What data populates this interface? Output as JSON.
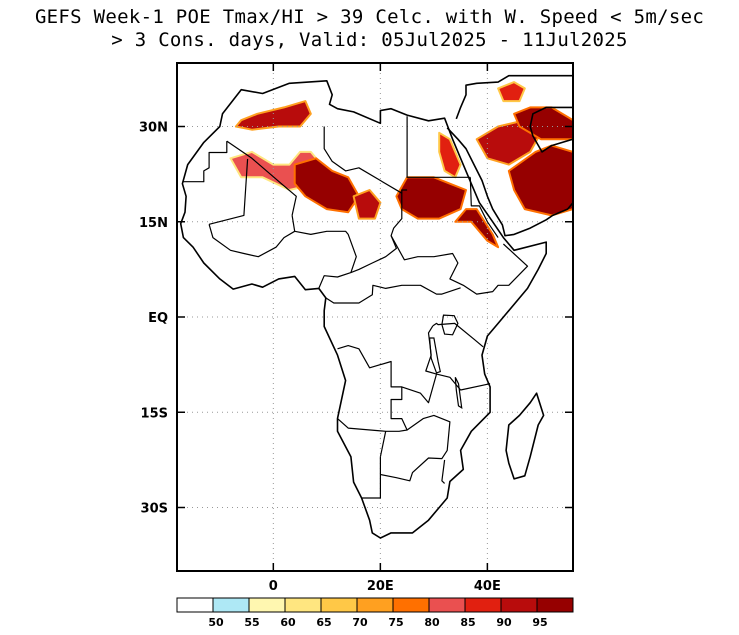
{
  "title": {
    "line1": "GEFS Week-1 POE Tmax/HI > 39 Celc. with W. Speed < 5m/sec",
    "line2": "> 3 Cons. days, Valid: 05Jul2025 - 11Jul2025"
  },
  "axes": {
    "lon_range": [
      -18,
      56
    ],
    "lat_range": [
      -40,
      40
    ],
    "x_ticks": [
      {
        "value": 0,
        "label": "0"
      },
      {
        "value": 20,
        "label": "20E"
      },
      {
        "value": 40,
        "label": "40E"
      }
    ],
    "y_ticks": [
      {
        "value": 30,
        "label": "30N"
      },
      {
        "value": 15,
        "label": "15N"
      },
      {
        "value": 0,
        "label": "EQ"
      },
      {
        "value": -15,
        "label": "15S"
      },
      {
        "value": -30,
        "label": "30S"
      }
    ],
    "grid": "dotted"
  },
  "colorbar": {
    "colors": [
      "#ffffff",
      "#aee8f5",
      "#fff7b0",
      "#ffe680",
      "#ffc847",
      "#ffa020",
      "#ff7000",
      "#ea5050",
      "#e12010",
      "#b80c0c",
      "#960000"
    ],
    "labels": [
      "50",
      "55",
      "60",
      "65",
      "70",
      "75",
      "80",
      "85",
      "90",
      "95"
    ]
  },
  "heat_regions": [
    {
      "name": "algeria-north",
      "level": 9,
      "pts": [
        [
          -6,
          31
        ],
        [
          -3,
          32
        ],
        [
          2,
          33
        ],
        [
          6,
          34
        ],
        [
          7,
          32
        ],
        [
          5,
          30
        ],
        [
          1,
          30
        ],
        [
          -4,
          29.5
        ],
        [
          -7,
          30
        ]
      ]
    },
    {
      "name": "sahara-west",
      "level": 7,
      "pts": [
        [
          -8,
          25
        ],
        [
          -4,
          26
        ],
        [
          0,
          24
        ],
        [
          3,
          24
        ],
        [
          5,
          26
        ],
        [
          7,
          26
        ],
        [
          9,
          24
        ],
        [
          8,
          21
        ],
        [
          3,
          20
        ],
        [
          -2,
          22
        ],
        [
          -6,
          22
        ]
      ]
    },
    {
      "name": "niger-chad",
      "level": 10,
      "pts": [
        [
          4,
          24
        ],
        [
          8,
          25
        ],
        [
          11,
          23
        ],
        [
          14,
          22
        ],
        [
          16,
          19
        ],
        [
          14,
          16.5
        ],
        [
          10,
          17
        ],
        [
          6,
          19
        ],
        [
          4,
          21
        ]
      ]
    },
    {
      "name": "chad-east",
      "level": 9,
      "pts": [
        [
          15,
          19
        ],
        [
          18,
          20
        ],
        [
          20,
          18
        ],
        [
          19,
          15.5
        ],
        [
          16,
          15.5
        ]
      ]
    },
    {
      "name": "sudan-north",
      "level": 10,
      "pts": [
        [
          25,
          22
        ],
        [
          30,
          22
        ],
        [
          33,
          21
        ],
        [
          36,
          20
        ],
        [
          35,
          17
        ],
        [
          31,
          15.5
        ],
        [
          27,
          15.5
        ],
        [
          24,
          17
        ],
        [
          23,
          19
        ]
      ]
    },
    {
      "name": "egypt-east",
      "level": 8,
      "pts": [
        [
          31,
          29
        ],
        [
          33,
          28
        ],
        [
          35,
          24
        ],
        [
          34,
          22
        ],
        [
          32,
          23
        ],
        [
          31,
          26
        ]
      ]
    },
    {
      "name": "arabia-east",
      "level": 10,
      "pts": [
        [
          44,
          23
        ],
        [
          49,
          26
        ],
        [
          52,
          27
        ],
        [
          56,
          26
        ],
        [
          56,
          17
        ],
        [
          52,
          16
        ],
        [
          47,
          17
        ],
        [
          45,
          20
        ]
      ]
    },
    {
      "name": "arabia-north",
      "level": 9,
      "pts": [
        [
          38,
          28
        ],
        [
          42,
          30
        ],
        [
          47,
          31
        ],
        [
          50,
          29
        ],
        [
          48,
          26
        ],
        [
          44,
          24
        ],
        [
          40,
          25
        ]
      ]
    },
    {
      "name": "iraq-gulf",
      "level": 10,
      "pts": [
        [
          45,
          32
        ],
        [
          48,
          33
        ],
        [
          52,
          33
        ],
        [
          56,
          31
        ],
        [
          56,
          28
        ],
        [
          50,
          28
        ],
        [
          46,
          30
        ]
      ]
    },
    {
      "name": "red-sea-coast",
      "level": 10,
      "pts": [
        [
          34,
          15
        ],
        [
          37,
          15
        ],
        [
          40,
          12
        ],
        [
          42,
          11
        ],
        [
          41,
          13
        ],
        [
          38,
          17
        ],
        [
          36,
          17
        ]
      ]
    },
    {
      "name": "mesopotamia",
      "level": 8,
      "pts": [
        [
          42,
          36
        ],
        [
          45,
          37
        ],
        [
          47,
          36
        ],
        [
          46,
          34
        ],
        [
          43,
          34
        ]
      ]
    }
  ],
  "coast_points": [
    [
      -17,
      21
    ],
    [
      -16,
      24
    ],
    [
      -13,
      27.5
    ],
    [
      -10,
      30
    ],
    [
      -9.5,
      32
    ],
    [
      -6,
      35.8
    ],
    [
      -2,
      35.2
    ],
    [
      3,
      36.8
    ],
    [
      10,
      37.2
    ],
    [
      11,
      35
    ],
    [
      10.5,
      33.5
    ],
    [
      12,
      32.8
    ],
    [
      15,
      32.3
    ],
    [
      20,
      30.5
    ],
    [
      20,
      32.5
    ],
    [
      22,
      32.8
    ],
    [
      25,
      31.8
    ],
    [
      29,
      30.9
    ],
    [
      32,
      31.3
    ],
    [
      33.5,
      28
    ],
    [
      35,
      25
    ],
    [
      37,
      21
    ],
    [
      38.5,
      18
    ],
    [
      41,
      15
    ],
    [
      43,
      12.5
    ],
    [
      45,
      10.5
    ],
    [
      51,
      11.8
    ],
    [
      51,
      10
    ],
    [
      49.5,
      7.5
    ],
    [
      47.5,
      4.5
    ],
    [
      42,
      -1
    ],
    [
      40,
      -3
    ],
    [
      39,
      -6
    ],
    [
      39.5,
      -9
    ],
    [
      40.5,
      -11
    ],
    [
      40.5,
      -15
    ],
    [
      37,
      -18
    ],
    [
      35,
      -21
    ],
    [
      35.5,
      -24
    ],
    [
      33,
      -25.9
    ],
    [
      32.5,
      -28.5
    ],
    [
      31,
      -30
    ],
    [
      29,
      -32
    ],
    [
      26,
      -34
    ],
    [
      22,
      -34
    ],
    [
      20,
      -34.8
    ],
    [
      18.5,
      -34
    ],
    [
      18,
      -32
    ],
    [
      16.5,
      -28.5
    ],
    [
      15,
      -26
    ],
    [
      14.5,
      -22
    ],
    [
      12,
      -18
    ],
    [
      12,
      -16
    ],
    [
      13,
      -12
    ],
    [
      13.5,
      -10
    ],
    [
      12,
      -6
    ],
    [
      9.5,
      -1.5
    ],
    [
      9.5,
      1
    ],
    [
      9.8,
      3
    ],
    [
      8.5,
      4.5
    ],
    [
      6,
      4.3
    ],
    [
      4,
      6.4
    ],
    [
      1,
      6
    ],
    [
      -2,
      4.7
    ],
    [
      -4,
      5.2
    ],
    [
      -7.5,
      4.4
    ],
    [
      -10,
      6
    ],
    [
      -13,
      8.5
    ],
    [
      -15,
      11
    ],
    [
      -16.8,
      12.5
    ],
    [
      -17.3,
      14.7
    ],
    [
      -16.5,
      16.5
    ],
    [
      -16.3,
      19
    ],
    [
      -17,
      21
    ]
  ],
  "arabia_points": [
    [
      32.5,
      29.8
    ],
    [
      34.5,
      28
    ],
    [
      36,
      26.5
    ],
    [
      37.5,
      24
    ],
    [
      39,
      21.5
    ],
    [
      40,
      19
    ],
    [
      41,
      17
    ],
    [
      42.8,
      14.5
    ],
    [
      43.3,
      12.8
    ],
    [
      45,
      13
    ],
    [
      48,
      14
    ],
    [
      51,
      15.3
    ],
    [
      52.2,
      16
    ],
    [
      55,
      17
    ],
    [
      56,
      18
    ],
    [
      56,
      28
    ],
    [
      52,
      27
    ],
    [
      50.2,
      26
    ],
    [
      48.5,
      28.5
    ],
    [
      48,
      30
    ],
    [
      48.5,
      32
    ],
    [
      51,
      33
    ],
    [
      56,
      33
    ],
    [
      56,
      38
    ],
    [
      44,
      38
    ],
    [
      42,
      37
    ],
    [
      38,
      36.8
    ],
    [
      36,
      36.5
    ],
    [
      36,
      35
    ],
    [
      35,
      33
    ],
    [
      34.2,
      31.2
    ]
  ],
  "madagascar_points": [
    [
      49.2,
      -12
    ],
    [
      50.5,
      -15.5
    ],
    [
      49.5,
      -17
    ],
    [
      48,
      -22
    ],
    [
      47,
      -25
    ],
    [
      45,
      -25.5
    ],
    [
      44,
      -23
    ],
    [
      43.5,
      -21
    ],
    [
      44,
      -17
    ],
    [
      46,
      -15.5
    ],
    [
      48,
      -13.5
    ]
  ],
  "border_lines": [
    [
      [
        -8.7,
        27.7
      ],
      [
        -4,
        25
      ],
      [
        1.5,
        21
      ],
      [
        4.3,
        19
      ],
      [
        3.5,
        16
      ]
    ],
    [
      [
        -8.7,
        27.7
      ],
      [
        -8.7,
        25.9
      ],
      [
        -12,
        25.9
      ],
      [
        -12,
        23.5
      ],
      [
        -13,
        23
      ],
      [
        -13,
        21.3
      ],
      [
        -17,
        21.3
      ]
    ],
    [
      [
        -4.8,
        24.9
      ],
      [
        -5.5,
        16
      ],
      [
        -12,
        14.6
      ]
    ],
    [
      [
        -12,
        14.6
      ],
      [
        -11.3,
        12.5
      ],
      [
        -8,
        10.5
      ],
      [
        -5.5,
        10
      ],
      [
        -2.8,
        9.5
      ],
      [
        0.5,
        11
      ],
      [
        2,
        12.5
      ],
      [
        4,
        13.5
      ]
    ],
    [
      [
        3.5,
        16
      ],
      [
        4,
        13.5
      ],
      [
        7,
        13
      ],
      [
        10,
        13.5
      ],
      [
        13.5,
        13.5
      ],
      [
        14,
        13
      ],
      [
        15.5,
        9.5
      ],
      [
        14.5,
        7
      ],
      [
        12,
        6.3
      ],
      [
        9.5,
        6.5
      ],
      [
        8.5,
        4.5
      ]
    ],
    [
      [
        9.5,
        30
      ],
      [
        9.5,
        26.5
      ],
      [
        11,
        24.5
      ],
      [
        13.5,
        23
      ],
      [
        16,
        23.5
      ],
      [
        24,
        19.5
      ],
      [
        24,
        15.5
      ],
      [
        22.5,
        14
      ],
      [
        22,
        12.8
      ],
      [
        23,
        10.8
      ],
      [
        21,
        9.5
      ],
      [
        18.5,
        8.5
      ],
      [
        16,
        7.5
      ],
      [
        14.5,
        7
      ]
    ],
    [
      [
        25,
        31.6
      ],
      [
        25,
        22
      ],
      [
        31.5,
        22
      ],
      [
        36.8,
        22
      ]
    ],
    [
      [
        24,
        19.5
      ],
      [
        24,
        20
      ],
      [
        25,
        20
      ]
    ],
    [
      [
        22,
        12.8
      ],
      [
        24.5,
        9
      ],
      [
        27,
        9.5
      ],
      [
        30,
        9.5
      ],
      [
        33.5,
        10
      ],
      [
        34.5,
        8.5
      ],
      [
        33,
        6
      ],
      [
        35.5,
        5
      ],
      [
        38,
        3.6
      ],
      [
        41,
        4
      ],
      [
        42,
        5
      ],
      [
        44,
        5
      ],
      [
        47.5,
        8
      ],
      [
        43,
        11.5
      ]
    ],
    [
      [
        36.8,
        22
      ],
      [
        37,
        17.5
      ],
      [
        38.5,
        17.5
      ],
      [
        40,
        15
      ],
      [
        42,
        12.5
      ]
    ],
    [
      [
        9.8,
        3
      ],
      [
        11.3,
        2.2
      ],
      [
        16,
        2.2
      ],
      [
        18.5,
        3.5
      ],
      [
        18.6,
        5
      ],
      [
        21,
        4.5
      ],
      [
        24,
        5
      ],
      [
        27.5,
        5
      ],
      [
        30.5,
        3.6
      ],
      [
        31.5,
        3.6
      ],
      [
        35,
        4.6
      ]
    ],
    [
      [
        29.8,
        -1.4
      ],
      [
        30.5,
        -1
      ],
      [
        30.8,
        -1.2
      ],
      [
        33.9,
        -1
      ],
      [
        37.5,
        -3.5
      ],
      [
        39.2,
        -4.7
      ]
    ],
    [
      [
        12,
        -5
      ],
      [
        14,
        -4.5
      ],
      [
        16,
        -5
      ],
      [
        18,
        -8
      ],
      [
        22,
        -7
      ],
      [
        22,
        -11
      ],
      [
        24,
        -11
      ],
      [
        27.5,
        -12
      ],
      [
        29,
        -13.5
      ],
      [
        30.5,
        -9
      ],
      [
        28.5,
        -8.5
      ],
      [
        29.5,
        -6
      ],
      [
        29,
        -2.5
      ],
      [
        29.8,
        -1.4
      ]
    ],
    [
      [
        12,
        -16
      ],
      [
        14,
        -17.5
      ],
      [
        21,
        -18
      ],
      [
        23.5,
        -18
      ],
      [
        25,
        -17.8
      ],
      [
        24,
        -16
      ],
      [
        22,
        -16
      ],
      [
        22,
        -13
      ],
      [
        24,
        -13
      ],
      [
        24,
        -11
      ]
    ],
    [
      [
        30.5,
        -9
      ],
      [
        33,
        -9.5
      ],
      [
        35,
        -11.5
      ],
      [
        40.5,
        -10.5
      ]
    ],
    [
      [
        20,
        -22
      ],
      [
        20,
        -25
      ],
      [
        20,
        -28.5
      ],
      [
        17.5,
        -28.5
      ],
      [
        16.5,
        -28.5
      ]
    ],
    [
      [
        20,
        -22
      ],
      [
        21,
        -18
      ]
    ],
    [
      [
        25,
        -17.8
      ],
      [
        28,
        -16
      ],
      [
        30,
        -15.5
      ],
      [
        33,
        -16.5
      ],
      [
        32.5,
        -21
      ],
      [
        31.5,
        -22.3
      ],
      [
        29,
        -22.2
      ],
      [
        26,
        -24.5
      ],
      [
        25.5,
        -25.8
      ],
      [
        23,
        -25.3
      ],
      [
        20,
        -24.8
      ]
    ],
    [
      [
        32,
        -26.2
      ],
      [
        31.5,
        -25.8
      ],
      [
        32,
        -22.5
      ]
    ]
  ],
  "lakes": [
    {
      "name": "lake-victoria",
      "pts": [
        [
          31.8,
          0.3
        ],
        [
          33.8,
          0.2
        ],
        [
          34.5,
          -1
        ],
        [
          33.5,
          -2.8
        ],
        [
          32,
          -2.7
        ],
        [
          31.5,
          -1.2
        ]
      ]
    },
    {
      "name": "lake-tanganyika",
      "pts": [
        [
          29.2,
          -3.3
        ],
        [
          30,
          -3.3
        ],
        [
          30.8,
          -7
        ],
        [
          31.2,
          -8.6
        ],
        [
          30.5,
          -8.8
        ],
        [
          29.5,
          -6.5
        ]
      ]
    },
    {
      "name": "lake-malawi",
      "pts": [
        [
          34,
          -9.5
        ],
        [
          34.6,
          -10.5
        ],
        [
          35.2,
          -14.3
        ],
        [
          34.6,
          -14
        ],
        [
          34.2,
          -11.5
        ]
      ]
    }
  ]
}
